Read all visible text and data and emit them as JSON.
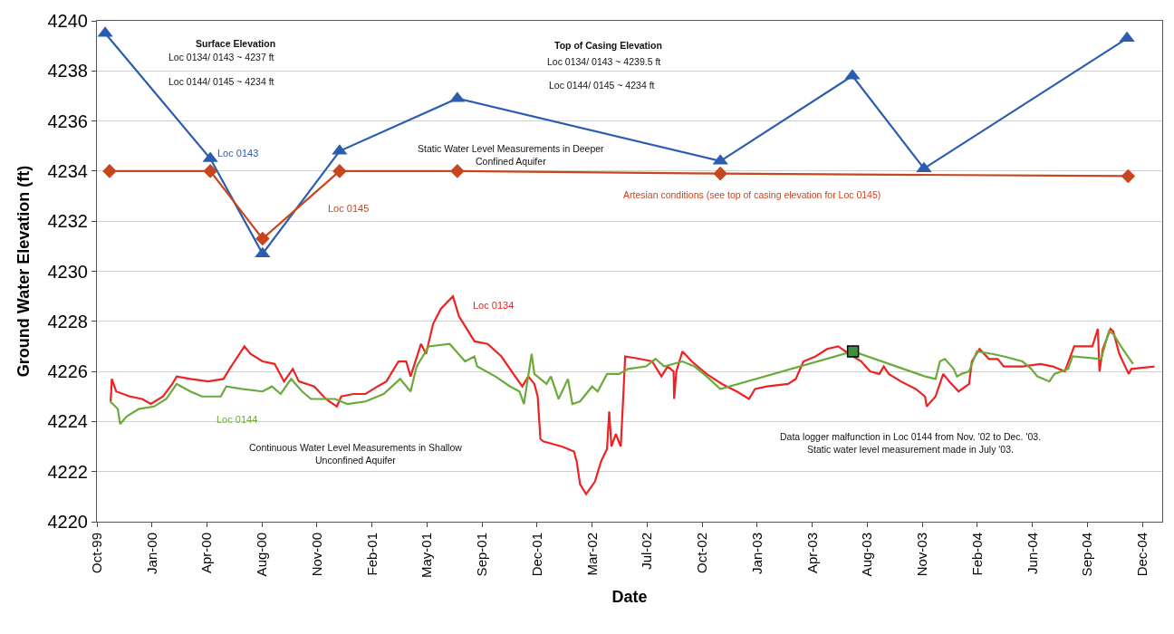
{
  "chart_data": {
    "type": "line",
    "xlabel": "Date",
    "ylabel": "Ground Water Elevation (ft)",
    "xlim": [
      "1999-10-07",
      "2005-01-24"
    ],
    "xticks": [
      {
        "value": "1999-10-07",
        "label": "Oct-99"
      },
      {
        "value": "2000-01-15",
        "label": "Jan-00"
      },
      {
        "value": "2000-04-24",
        "label": "Apr-00"
      },
      {
        "value": "2000-08-02",
        "label": "Aug-00"
      },
      {
        "value": "2000-11-10",
        "label": "Nov-00"
      },
      {
        "value": "2001-02-18",
        "label": "Feb-01"
      },
      {
        "value": "2001-05-29",
        "label": "May-01"
      },
      {
        "value": "2001-09-06",
        "label": "Sep-01"
      },
      {
        "value": "2001-12-15",
        "label": "Dec-01"
      },
      {
        "value": "2002-03-25",
        "label": "Mar-02"
      },
      {
        "value": "2002-07-03",
        "label": "Jul-02"
      },
      {
        "value": "2002-10-11",
        "label": "Oct-02"
      },
      {
        "value": "2003-01-19",
        "label": "Jan-03"
      },
      {
        "value": "2003-04-29",
        "label": "Apr-03"
      },
      {
        "value": "2003-08-07",
        "label": "Aug-03"
      },
      {
        "value": "2003-11-15",
        "label": "Nov-03"
      },
      {
        "value": "2004-02-23",
        "label": "Feb-04"
      },
      {
        "value": "2004-06-02",
        "label": "Jun-04"
      },
      {
        "value": "2004-09-10",
        "label": "Sep-04"
      },
      {
        "value": "2004-12-19",
        "label": "Dec-04"
      }
    ],
    "ylim": [
      4220,
      4240
    ],
    "yticks": [
      4220,
      4222,
      4224,
      4226,
      4228,
      4230,
      4232,
      4234,
      4236,
      4238,
      4240
    ],
    "grid": "y",
    "legend": false,
    "series": [
      {
        "marker": "triangle",
        "color": "#2a5db0",
        "x": [
          "1999-10-22",
          "2000-04-30",
          "2000-08-03",
          "2000-12-21",
          "2001-07-23",
          "2002-11-13",
          "2003-07-11",
          "2003-11-18",
          "2004-11-21"
        ],
        "values": [
          4239.5,
          4234.5,
          4230.7,
          4234.8,
          4236.9,
          4234.4,
          4237.8,
          4234.1,
          4239.3
        ]
      },
      {
        "marker": "diamond",
        "color": "#c8461e",
        "x": [
          "1999-10-30",
          "2000-04-30",
          "2000-08-03",
          "2000-12-21",
          "2001-07-23",
          "2002-11-13",
          "2004-11-23"
        ],
        "values": [
          4234.0,
          4234.0,
          4231.3,
          4234.0,
          4234.0,
          4233.9,
          4233.8
        ]
      },
      {
        "marker": "none",
        "color": "#ee2222",
        "x": [
          "1999-11-01",
          "1999-11-03",
          "1999-11-11",
          "1999-12-06",
          "1999-12-28",
          "2000-01-13",
          "2000-02-04",
          "2000-02-21",
          "2000-02-29",
          "2000-03-25",
          "2000-04-26",
          "2000-05-24",
          "2000-06-04",
          "2000-07-01",
          "2000-07-12",
          "2000-08-03",
          "2000-08-25",
          "2000-09-11",
          "2000-09-27",
          "2000-10-08",
          "2000-11-05",
          "2000-11-26",
          "2000-12-16",
          "2000-12-24",
          "2001-01-15",
          "2001-02-06",
          "2001-02-28",
          "2001-03-16",
          "2001-04-07",
          "2001-04-21",
          "2001-04-29",
          "2001-05-18",
          "2001-05-27",
          "2001-06-09",
          "2001-06-23",
          "2001-07-15",
          "2001-07-26",
          "2001-08-12",
          "2001-08-23",
          "2001-09-16",
          "2001-10-11",
          "2001-11-02",
          "2001-11-18",
          "2001-11-29",
          "2001-12-10",
          "2001-12-16",
          "2001-12-21",
          "2001-12-27",
          "2002-01-29",
          "2002-02-20",
          "2002-02-25",
          "2002-03-03",
          "2002-03-14",
          "2002-03-30",
          "2002-04-10",
          "2002-04-21",
          "2002-04-25",
          "2002-04-29",
          "2002-05-07",
          "2002-05-16",
          "2002-05-21",
          "2002-05-24",
          "2002-06-20",
          "2002-07-12",
          "2002-07-29",
          "2002-08-09",
          "2002-08-20",
          "2002-08-21",
          "2002-08-25",
          "2002-09-05",
          "2002-09-22",
          "2002-10-19",
          "2002-11-16",
          "2002-12-13",
          "2003-01-04",
          "2003-01-15",
          "2003-02-06",
          "2003-03-16",
          "2003-03-30",
          "2003-04-13",
          "2003-05-05",
          "2003-05-26",
          "2003-06-15",
          "2003-07-05",
          "2003-07-27",
          "2003-08-12",
          "2003-08-29",
          "2003-09-06",
          "2003-09-15",
          "2003-10-07",
          "2003-11-03",
          "2003-11-20",
          "2003-11-23",
          "2003-12-09",
          "2003-12-23",
          "2004-01-03",
          "2004-01-20",
          "2004-02-08",
          "2004-02-13",
          "2004-02-27",
          "2004-03-15",
          "2004-03-31",
          "2004-04-11",
          "2004-05-15",
          "2004-06-17",
          "2004-07-09",
          "2004-07-31",
          "2004-08-17",
          "2004-09-19",
          "2004-09-29",
          "2004-10-02",
          "2004-10-08",
          "2004-10-22",
          "2004-10-27",
          "2004-11-07",
          "2004-11-24",
          "2004-11-29",
          "2005-01-10"
        ],
        "values": [
          4224.8,
          4225.7,
          4225.2,
          4225.0,
          4224.9,
          4224.7,
          4225.0,
          4225.5,
          4225.8,
          4225.7,
          4225.6,
          4225.7,
          4226.1,
          4227.0,
          4226.7,
          4226.4,
          4226.3,
          4225.6,
          4226.1,
          4225.6,
          4225.4,
          4224.9,
          4224.6,
          4225.0,
          4225.1,
          4225.1,
          4225.4,
          4225.6,
          4226.4,
          4226.4,
          4225.8,
          4227.1,
          4226.7,
          4227.9,
          4228.5,
          4229.0,
          4228.2,
          4227.6,
          4227.2,
          4227.1,
          4226.6,
          4225.9,
          4225.4,
          4225.8,
          4225.5,
          4225.0,
          4223.3,
          4223.2,
          4223.0,
          4222.8,
          4222.4,
          4221.5,
          4221.1,
          4221.6,
          4222.4,
          4222.9,
          4224.4,
          4223.0,
          4223.5,
          4223.0,
          4225.2,
          4226.6,
          4226.5,
          4226.4,
          4225.8,
          4226.2,
          4226.0,
          4224.9,
          4226.0,
          4226.8,
          4226.4,
          4225.9,
          4225.5,
          4225.2,
          4224.9,
          4225.3,
          4225.4,
          4225.5,
          4225.7,
          4226.4,
          4226.6,
          4226.9,
          4227.0,
          4226.7,
          4226.4,
          4226.0,
          4225.9,
          4226.2,
          4225.9,
          4225.6,
          4225.3,
          4225.0,
          4224.6,
          4225.0,
          4225.9,
          4225.6,
          4225.2,
          4225.5,
          4226.4,
          4226.9,
          4226.5,
          4226.5,
          4226.2,
          4226.2,
          4226.3,
          4226.2,
          4226.0,
          4227.0,
          4227.0,
          4227.7,
          4226.0,
          4226.9,
          4227.7,
          4227.6,
          4226.7,
          4225.9,
          4226.1,
          4226.2
        ]
      },
      {
        "marker": "none",
        "color": "#6aaa3a",
        "x": [
          "1999-10-31",
          "1999-11-14",
          "1999-11-18",
          "1999-11-30",
          "1999-12-22",
          "2000-01-19",
          "2000-02-10",
          "2000-02-29",
          "2000-03-25",
          "2000-04-15",
          "2000-05-19",
          "2000-05-29",
          "2000-06-26",
          "2000-08-03",
          "2000-08-20",
          "2000-09-05",
          "2000-09-24",
          "2000-10-14",
          "2000-10-30",
          "2000-11-21",
          "2000-12-13",
          "2001-01-04",
          "2001-02-06",
          "2001-03-11",
          "2001-04-10",
          "2001-04-29",
          "2001-05-10",
          "2001-06-01",
          "2001-07-09",
          "2001-08-06",
          "2001-08-23",
          "2001-08-28",
          "2001-09-30",
          "2001-10-27",
          "2001-11-13",
          "2001-11-21",
          "2001-12-05",
          "2001-12-10",
          "2002-01-01",
          "2002-01-09",
          "2002-01-23",
          "2002-02-09",
          "2002-02-17",
          "2002-03-03",
          "2002-03-25",
          "2002-04-04",
          "2002-04-21",
          "2002-05-13",
          "2002-05-29",
          "2002-07-01",
          "2002-07-18",
          "2002-08-03",
          "2002-09-05",
          "2002-09-27",
          "2002-10-19",
          "2002-11-13",
          "2003-07-12",
          "2003-11-20",
          "2003-12-09",
          "2003-12-17",
          "2003-12-26",
          "2004-01-11",
          "2004-01-17",
          "2004-01-25",
          "2004-02-08",
          "2004-02-22",
          "2004-03-21",
          "2004-04-11",
          "2004-05-15",
          "2004-05-31",
          "2004-06-11",
          "2004-07-03",
          "2004-07-12",
          "2004-08-06",
          "2004-08-14",
          "2004-10-05",
          "2004-10-19",
          "2004-10-27",
          "2004-11-13",
          "2004-12-02"
        ],
        "values": [
          4224.8,
          4224.5,
          4223.9,
          4224.2,
          4224.5,
          4224.6,
          4224.9,
          4225.5,
          4225.2,
          4225.0,
          4225.0,
          4225.4,
          4225.3,
          4225.2,
          4225.4,
          4225.1,
          4225.7,
          4225.2,
          4224.9,
          4224.9,
          4224.9,
          4224.7,
          4224.8,
          4225.1,
          4225.7,
          4225.2,
          4226.2,
          4227.0,
          4227.1,
          4226.4,
          4226.6,
          4226.2,
          4225.8,
          4225.4,
          4225.2,
          4224.7,
          4226.7,
          4225.9,
          4225.5,
          4225.8,
          4224.9,
          4225.7,
          4224.7,
          4224.8,
          4225.4,
          4225.2,
          4225.9,
          4225.9,
          4226.1,
          4226.2,
          4226.5,
          4226.2,
          4226.4,
          4226.2,
          4225.8,
          4225.3,
          4226.8,
          4225.8,
          4225.7,
          4226.4,
          4226.5,
          4226.1,
          4225.8,
          4225.9,
          4226.0,
          4226.8,
          4226.7,
          4226.6,
          4226.4,
          4226.1,
          4225.8,
          4225.6,
          4225.9,
          4226.1,
          4226.6,
          4226.5,
          4227.6,
          4227.5,
          4226.9,
          4226.3
        ]
      },
      {
        "type": "scatter",
        "marker": "square",
        "color": "#3f9140",
        "x": [
          "2003-07-12"
        ],
        "values": [
          4226.8
        ]
      }
    ],
    "annotations": [
      "Surface Elevation",
      "Loc 0134/ 0143 ~ 4237 ft",
      "Loc 0144/ 0145 ~ 4234 ft",
      "Top of Casing Elevation",
      "Loc 0134/ 0143 ~ 4239.5 ft",
      "Loc 0144/ 0145 ~ 4234 ft",
      "Static Water Level Measurements in Deeper\nConfined Aquifer",
      "Artesian conditions (see top of casing elevation for Loc 0145)",
      "Continuous Water Level Measurements in Shallow\nUnconfined Aquifer",
      "Data logger malfunction in Loc 0144 from Nov. '02 to Dec. '03.\nStatic water level measurement made in July '03.",
      "Loc 0145",
      "Loc 0144",
      {
        "text": "Loc 0143",
        "x": "2000-04-30",
        "y": 4234.5
      },
      {
        "text": "Loc 0134",
        "x": "2001-07-15",
        "y": 4229.0
      }
    ]
  }
}
